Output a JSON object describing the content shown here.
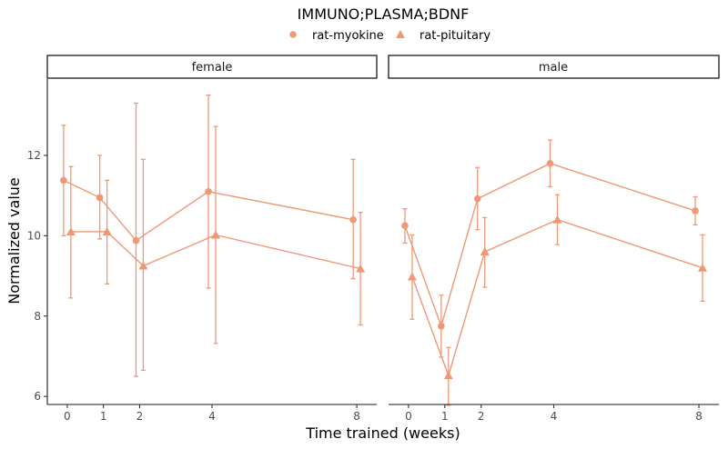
{
  "chart_data": {
    "type": "line",
    "title": "IMMUNO;PLASMA;BDNF",
    "xlabel": "Time trained (weeks)",
    "ylabel": "Normalized value",
    "ylim": [
      5.8,
      13.9
    ],
    "yticks": [
      6,
      8,
      10,
      12
    ],
    "xticks": [
      0,
      1,
      2,
      4,
      8
    ],
    "xlim": [
      -0.55,
      8.55
    ],
    "grid": false,
    "legend_position": "top",
    "series_color": "#EE9877",
    "series": [
      {
        "name": "rat-myokine",
        "marker": "circle",
        "dodge": -0.1
      },
      {
        "name": "rat-pituitary",
        "marker": "triangle",
        "dodge": 0.1
      }
    ],
    "panels": [
      {
        "label": "female",
        "data": {
          "rat-myokine": [
            {
              "x": 0,
              "y": 11.38,
              "lo": 10.0,
              "hi": 12.75
            },
            {
              "x": 1,
              "y": 10.95,
              "lo": 9.92,
              "hi": 12.0
            },
            {
              "x": 2,
              "y": 9.88,
              "lo": 6.5,
              "hi": 13.3
            },
            {
              "x": 4,
              "y": 11.1,
              "lo": 8.7,
              "hi": 13.5
            },
            {
              "x": 8,
              "y": 10.4,
              "lo": 8.93,
              "hi": 11.9
            }
          ],
          "rat-pituitary": [
            {
              "x": 0,
              "y": 10.1,
              "lo": 8.45,
              "hi": 11.72
            },
            {
              "x": 1,
              "y": 10.1,
              "lo": 8.8,
              "hi": 11.38
            },
            {
              "x": 2,
              "y": 9.25,
              "lo": 6.65,
              "hi": 11.9
            },
            {
              "x": 4,
              "y": 10.02,
              "lo": 7.32,
              "hi": 12.72
            },
            {
              "x": 8,
              "y": 9.18,
              "lo": 7.78,
              "hi": 10.58
            }
          ]
        }
      },
      {
        "label": "male",
        "data": {
          "rat-myokine": [
            {
              "x": 0,
              "y": 10.25,
              "lo": 9.82,
              "hi": 10.67
            },
            {
              "x": 1,
              "y": 7.75,
              "lo": 6.98,
              "hi": 8.52
            },
            {
              "x": 2,
              "y": 10.92,
              "lo": 10.15,
              "hi": 11.7
            },
            {
              "x": 4,
              "y": 11.8,
              "lo": 11.22,
              "hi": 12.38
            },
            {
              "x": 8,
              "y": 10.62,
              "lo": 10.27,
              "hi": 10.97
            }
          ],
          "rat-pituitary": [
            {
              "x": 0,
              "y": 8.98,
              "lo": 7.92,
              "hi": 10.02
            },
            {
              "x": 1,
              "y": 6.52,
              "lo": 5.78,
              "hi": 7.22
            },
            {
              "x": 2,
              "y": 9.6,
              "lo": 8.72,
              "hi": 10.45
            },
            {
              "x": 4,
              "y": 10.4,
              "lo": 9.78,
              "hi": 11.02
            },
            {
              "x": 8,
              "y": 9.2,
              "lo": 8.37,
              "hi": 10.02
            }
          ]
        }
      }
    ]
  }
}
